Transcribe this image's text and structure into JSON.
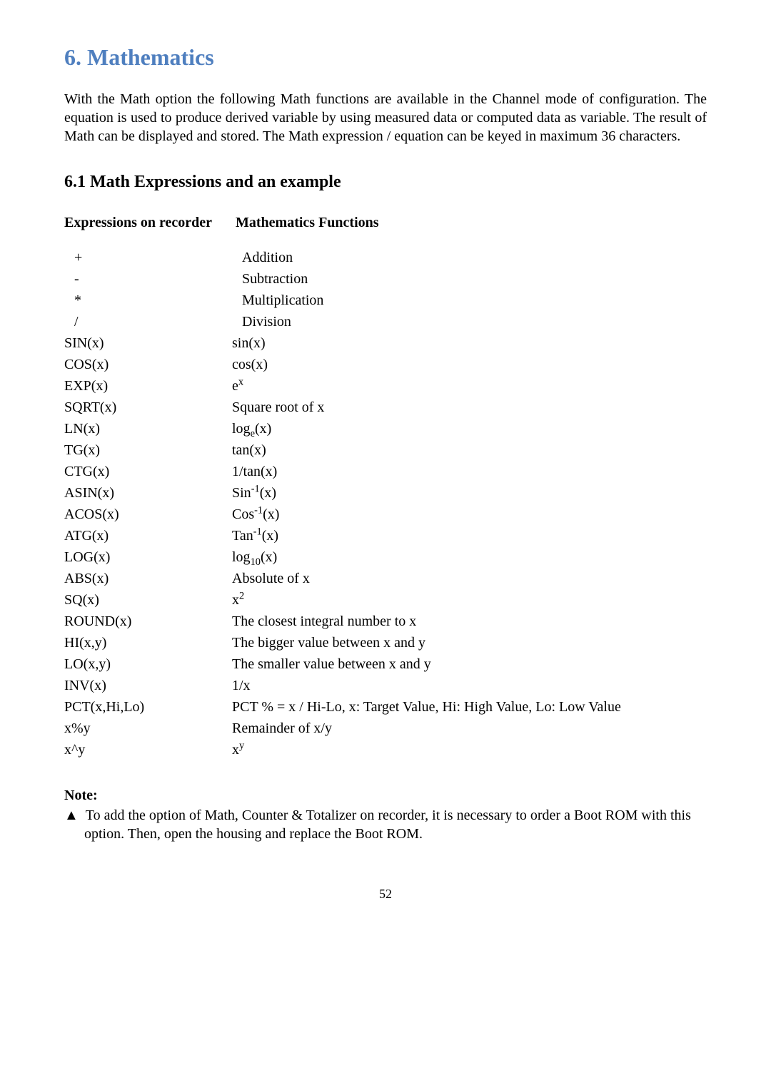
{
  "section": {
    "title": "6.  Mathematics",
    "intro": "With the Math option the following Math functions are available in the Channel mode of configuration. The equation is used to produce derived variable by using measured data or computed data as variable. The result of Math can be displayed and stored.  The Math expression / equation can be keyed in maximum 36 characters."
  },
  "subsection": {
    "title": "6.1 Math Expressions and an example",
    "header_col1": "Expressions on recorder",
    "header_col2": "Mathematics Functions"
  },
  "rows": {
    "r0": {
      "expr": "+",
      "func_html": "Addition",
      "indent": true
    },
    "r1": {
      "expr": "-",
      "func_html": "Subtraction",
      "indent": true
    },
    "r2": {
      "expr": "*",
      "func_html": "Multiplication",
      "indent": true
    },
    "r3": {
      "expr": "/",
      "func_html": "Division",
      "indent": true
    },
    "r4": {
      "expr": "SIN(x)",
      "func_html": "sin(x)"
    },
    "r5": {
      "expr": "COS(x)",
      "func_html": "cos(x)"
    },
    "r6": {
      "expr": "EXP(x)",
      "func_html": "e<sup>x</sup>"
    },
    "r7": {
      "expr": "SQRT(x)",
      "func_html": "Square root of x"
    },
    "r8": {
      "expr": "LN(x)",
      "func_html": "log<sub>e</sub>(x)"
    },
    "r9": {
      "expr": "TG(x)",
      "func_html": "tan(x)"
    },
    "r10": {
      "expr": "CTG(x)",
      "func_html": "1/tan(x)"
    },
    "r11": {
      "expr": "ASIN(x)",
      "func_html": "Sin<sup>-1</sup>(x)"
    },
    "r12": {
      "expr": "ACOS(x)",
      "func_html": "Cos<sup>-1</sup>(x)"
    },
    "r13": {
      "expr": "ATG(x)",
      "func_html": "Tan<sup>-1</sup>(x)"
    },
    "r14": {
      "expr": "LOG(x)",
      "func_html": "log<sub>10</sub>(x)"
    },
    "r15": {
      "expr": "ABS(x)",
      "func_html": "Absolute of x"
    },
    "r16": {
      "expr": "SQ(x)",
      "func_html": "x<sup>2</sup>"
    },
    "r17": {
      "expr": "ROUND(x)",
      "func_html": "The closest integral number to x"
    },
    "r18": {
      "expr": "HI(x,y)",
      "func_html": "The bigger value between x and y"
    },
    "r19": {
      "expr": "LO(x,y)",
      "func_html": "The smaller value between x and y"
    },
    "r20": {
      "expr": "INV(x)",
      "func_html": "1/x"
    },
    "r21": {
      "expr": "PCT(x,Hi,Lo)",
      "func_html": "PCT % = x / Hi-Lo, x: Target Value, Hi: High Value, Lo: Low Value"
    },
    "r22": {
      "expr": "x%y",
      "func_html": "Remainder of x/y"
    },
    "r23": {
      "expr": "x^y",
      "func_html": "x<sup>y</sup>"
    }
  },
  "note": {
    "heading": "Note:",
    "bullet": "▲",
    "text": "To add the option of Math, Counter & Totalizer on recorder, it is necessary to order a Boot ROM with this option.  Then, open the housing and replace the Boot ROM."
  },
  "page_number": "52",
  "colors": {
    "heading": "#4f7fbf",
    "text": "#000000",
    "background": "#ffffff"
  }
}
